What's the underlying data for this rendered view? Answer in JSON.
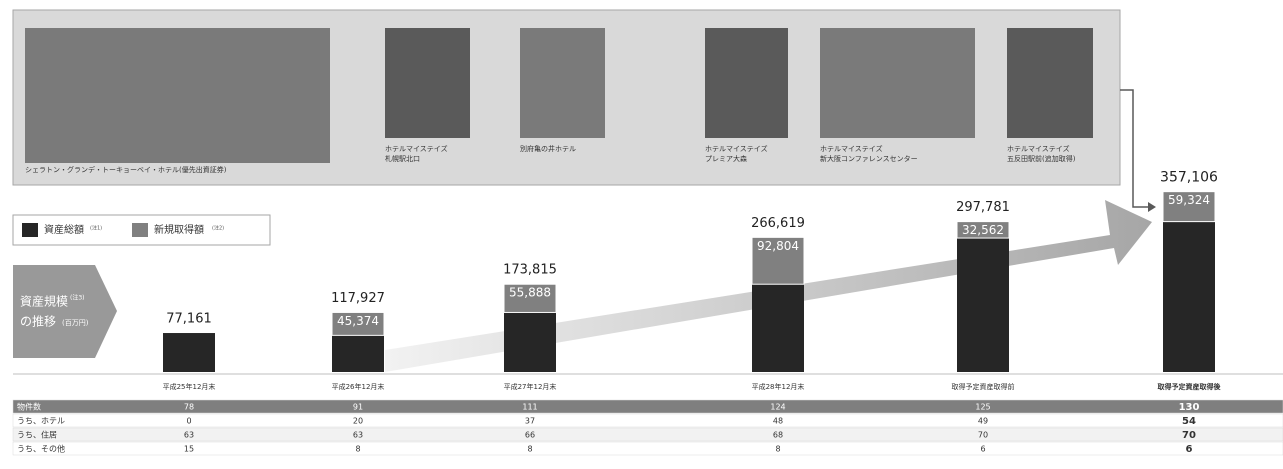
{
  "photos": [
    {
      "caption": [
        "シェラトン・グランデ・トーキョーベイ・ホテル(優先出資証券)"
      ]
    },
    {
      "caption": [
        "ホテルマイステイズ",
        "札幌駅北口"
      ]
    },
    {
      "caption": [
        "別府亀の井ホテル"
      ]
    },
    {
      "caption": [
        "ホテルマイステイズ",
        "プレミア大森"
      ]
    },
    {
      "caption": [
        "ホテルマイステイズ",
        "新大阪コンファレンスセンター"
      ]
    },
    {
      "caption": [
        "ホテルマイステイズ",
        "五反田駅前(追加取得)"
      ]
    }
  ],
  "side_label": {
    "lines": [
      "資産規模",
      "の推移"
    ],
    "note": "(注3)",
    "unit": "(百万円)"
  },
  "chart_data": {
    "type": "stacked-bar",
    "categories": [
      "平成25年12月末",
      "平成26年12月末",
      "平成27年12月末",
      "平成28年12月末",
      "取得予定資産取得前",
      "取得予定資産取得後"
    ],
    "series": [
      {
        "name": "資産総額",
        "note": "(注1)",
        "color": "#262626",
        "values": [
          77161,
          72553,
          117927,
          173815,
          265219,
          297782
        ]
      },
      {
        "name": "新規取得額",
        "note": "(注2)",
        "color": "#808080",
        "values": [
          null,
          45374,
          55888,
          92804,
          32562,
          59324
        ],
        "value_labels": [
          null,
          "45,374",
          "55,888",
          "92,804",
          "32,562",
          "59,324"
        ]
      }
    ],
    "totals": {
      "values": [
        77161,
        117927,
        173815,
        266619,
        297781,
        357106
      ],
      "value_labels": [
        "77,161",
        "117,927",
        "173,815",
        "266,619",
        "297,781",
        "357,106"
      ]
    },
    "ylim": [
      0,
      400000
    ]
  },
  "table": {
    "rows": [
      [
        "物件数",
        78,
        91,
        111,
        124,
        125,
        130
      ],
      [
        "うち、ホテル",
        0,
        20,
        37,
        48,
        49,
        54
      ],
      [
        "うち、住居",
        63,
        63,
        66,
        68,
        70,
        70
      ],
      [
        "うち、その他",
        15,
        8,
        8,
        8,
        6,
        6
      ]
    ]
  }
}
